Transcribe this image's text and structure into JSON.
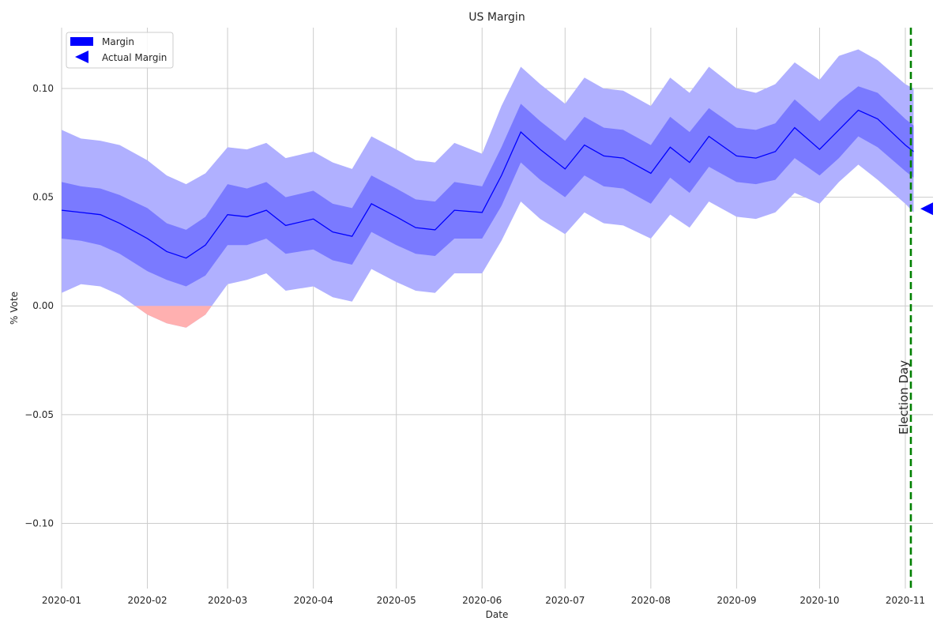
{
  "chart_data": {
    "type": "line",
    "title": "US Margin",
    "xlabel": "Date",
    "ylabel": "% Vote",
    "xlim": [
      "2020-01-01",
      "2020-11-11"
    ],
    "ylim": [
      -0.13,
      0.128
    ],
    "x_ticks": [
      "2020-01",
      "2020-02",
      "2020-03",
      "2020-04",
      "2020-05",
      "2020-06",
      "2020-07",
      "2020-08",
      "2020-09",
      "2020-10",
      "2020-11"
    ],
    "y_ticks": [
      0.1,
      0.05,
      0.0,
      -0.05,
      -0.1
    ],
    "y_tick_labels": [
      "0.10",
      "0.05",
      "0.00",
      "−0.05",
      "−0.10"
    ],
    "grid": true,
    "legend": {
      "placement": "top-left",
      "entries": [
        {
          "label": "Margin",
          "marker": "patch",
          "color": "#0000ff"
        },
        {
          "label": "Actual Margin",
          "marker": "left-triangle",
          "color": "#0000ff"
        }
      ]
    },
    "colors": {
      "margin_line": "#0000ff",
      "inner_band": "#7a7aff",
      "outer_band": "#b0b0ff",
      "negative_band": "#ffb0b0",
      "election_line": "#008000"
    },
    "series": [
      {
        "name": "Margin",
        "x": [
          "2020-01-01",
          "2020-01-08",
          "2020-01-15",
          "2020-01-22",
          "2020-02-01",
          "2020-02-08",
          "2020-02-15",
          "2020-02-22",
          "2020-03-01",
          "2020-03-08",
          "2020-03-15",
          "2020-03-22",
          "2020-04-01",
          "2020-04-08",
          "2020-04-15",
          "2020-04-22",
          "2020-05-01",
          "2020-05-08",
          "2020-05-15",
          "2020-05-22",
          "2020-06-01",
          "2020-06-08",
          "2020-06-15",
          "2020-06-22",
          "2020-07-01",
          "2020-07-08",
          "2020-07-15",
          "2020-07-22",
          "2020-08-01",
          "2020-08-08",
          "2020-08-15",
          "2020-08-22",
          "2020-09-01",
          "2020-09-08",
          "2020-09-15",
          "2020-09-22",
          "2020-10-01",
          "2020-10-08",
          "2020-10-15",
          "2020-10-22",
          "2020-11-01",
          "2020-11-04"
        ],
        "values": [
          0.044,
          0.043,
          0.042,
          0.038,
          0.031,
          0.025,
          0.022,
          0.028,
          0.042,
          0.041,
          0.044,
          0.037,
          0.04,
          0.034,
          0.032,
          0.047,
          0.041,
          0.036,
          0.035,
          0.044,
          0.043,
          0.06,
          0.08,
          0.072,
          0.063,
          0.074,
          0.069,
          0.068,
          0.061,
          0.073,
          0.066,
          0.078,
          0.069,
          0.068,
          0.071,
          0.082,
          0.072,
          0.081,
          0.09,
          0.086,
          0.074,
          0.071
        ],
        "inner_lower": [
          0.031,
          0.03,
          0.028,
          0.024,
          0.016,
          0.012,
          0.009,
          0.014,
          0.028,
          0.028,
          0.031,
          0.024,
          0.026,
          0.021,
          0.019,
          0.034,
          0.028,
          0.024,
          0.023,
          0.031,
          0.031,
          0.046,
          0.066,
          0.058,
          0.05,
          0.06,
          0.055,
          0.054,
          0.047,
          0.059,
          0.052,
          0.064,
          0.057,
          0.056,
          0.058,
          0.068,
          0.06,
          0.068,
          0.078,
          0.073,
          0.062,
          0.059
        ],
        "inner_upper": [
          0.057,
          0.055,
          0.054,
          0.051,
          0.045,
          0.038,
          0.035,
          0.041,
          0.056,
          0.054,
          0.057,
          0.05,
          0.053,
          0.047,
          0.045,
          0.06,
          0.054,
          0.049,
          0.048,
          0.057,
          0.055,
          0.073,
          0.093,
          0.085,
          0.076,
          0.087,
          0.082,
          0.081,
          0.074,
          0.087,
          0.08,
          0.091,
          0.082,
          0.081,
          0.084,
          0.095,
          0.085,
          0.094,
          0.101,
          0.098,
          0.086,
          0.083
        ],
        "outer_lower": [
          0.006,
          0.01,
          0.009,
          0.005,
          -0.004,
          -0.008,
          -0.01,
          -0.004,
          0.01,
          0.012,
          0.015,
          0.007,
          0.009,
          0.004,
          0.002,
          0.017,
          0.011,
          0.007,
          0.006,
          0.015,
          0.015,
          0.03,
          0.048,
          0.04,
          0.033,
          0.043,
          0.038,
          0.037,
          0.031,
          0.042,
          0.036,
          0.048,
          0.041,
          0.04,
          0.043,
          0.052,
          0.047,
          0.057,
          0.065,
          0.058,
          0.047,
          0.043
        ],
        "outer_upper": [
          0.081,
          0.077,
          0.076,
          0.074,
          0.067,
          0.06,
          0.056,
          0.061,
          0.073,
          0.072,
          0.075,
          0.068,
          0.071,
          0.066,
          0.063,
          0.078,
          0.072,
          0.067,
          0.066,
          0.075,
          0.07,
          0.092,
          0.11,
          0.102,
          0.093,
          0.105,
          0.1,
          0.099,
          0.092,
          0.105,
          0.098,
          0.11,
          0.1,
          0.098,
          0.102,
          0.112,
          0.104,
          0.115,
          0.118,
          0.113,
          0.102,
          0.1
        ]
      }
    ],
    "actual_margin": {
      "label": "Actual Margin",
      "x": "2020-11-11",
      "y": 0.0447
    },
    "election_day": {
      "label": "Election Day",
      "x": "2020-11-03"
    }
  }
}
